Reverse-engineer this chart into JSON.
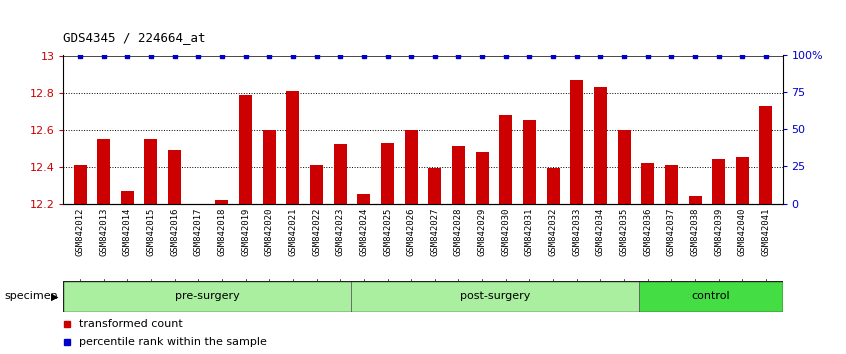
{
  "title": "GDS4345 / 224664_at",
  "samples": [
    "GSM842012",
    "GSM842013",
    "GSM842014",
    "GSM842015",
    "GSM842016",
    "GSM842017",
    "GSM842018",
    "GSM842019",
    "GSM842020",
    "GSM842021",
    "GSM842022",
    "GSM842023",
    "GSM842024",
    "GSM842025",
    "GSM842026",
    "GSM842027",
    "GSM842028",
    "GSM842029",
    "GSM842030",
    "GSM842031",
    "GSM842032",
    "GSM842033",
    "GSM842034",
    "GSM842035",
    "GSM842036",
    "GSM842037",
    "GSM842038",
    "GSM842039",
    "GSM842040",
    "GSM842041"
  ],
  "values": [
    12.41,
    12.55,
    12.27,
    12.55,
    12.49,
    12.2,
    12.22,
    12.79,
    12.6,
    12.81,
    12.41,
    12.52,
    12.25,
    12.53,
    12.6,
    12.39,
    12.51,
    12.48,
    12.68,
    12.65,
    12.39,
    12.87,
    12.83,
    12.6,
    12.42,
    12.41,
    12.24,
    12.44,
    12.45,
    12.73
  ],
  "bar_color": "#CC0000",
  "percentile_color": "#0000CC",
  "ylim_min": 12.2,
  "ylim_max": 13.0,
  "yticks_left": [
    12.2,
    12.4,
    12.6,
    12.8,
    13
  ],
  "yticks_left_labels": [
    "12.2",
    "12.4",
    "12.6",
    "12.8",
    "13"
  ],
  "yticks_right": [
    0,
    25,
    50,
    75,
    100
  ],
  "yticks_right_labels": [
    "0",
    "25",
    "50",
    "75",
    "100%"
  ],
  "ylabel_left_color": "#CC0000",
  "ylabel_right_color": "#0000CC",
  "groups": [
    {
      "label": "pre-surgery",
      "start": 0,
      "end": 12,
      "color": "#AAEEA0"
    },
    {
      "label": "post-surgery",
      "start": 12,
      "end": 24,
      "color": "#AAEEA0"
    },
    {
      "label": "control",
      "start": 24,
      "end": 30,
      "color": "#44DD44"
    }
  ],
  "specimen_label": "specimen",
  "legend_items": [
    {
      "label": "transformed count",
      "color": "#CC0000"
    },
    {
      "label": "percentile rank within the sample",
      "color": "#0000CC"
    }
  ],
  "bar_width": 0.55,
  "dotted_gridlines": [
    12.4,
    12.6,
    12.8
  ],
  "xtick_bg_color": "#CCCCCC"
}
